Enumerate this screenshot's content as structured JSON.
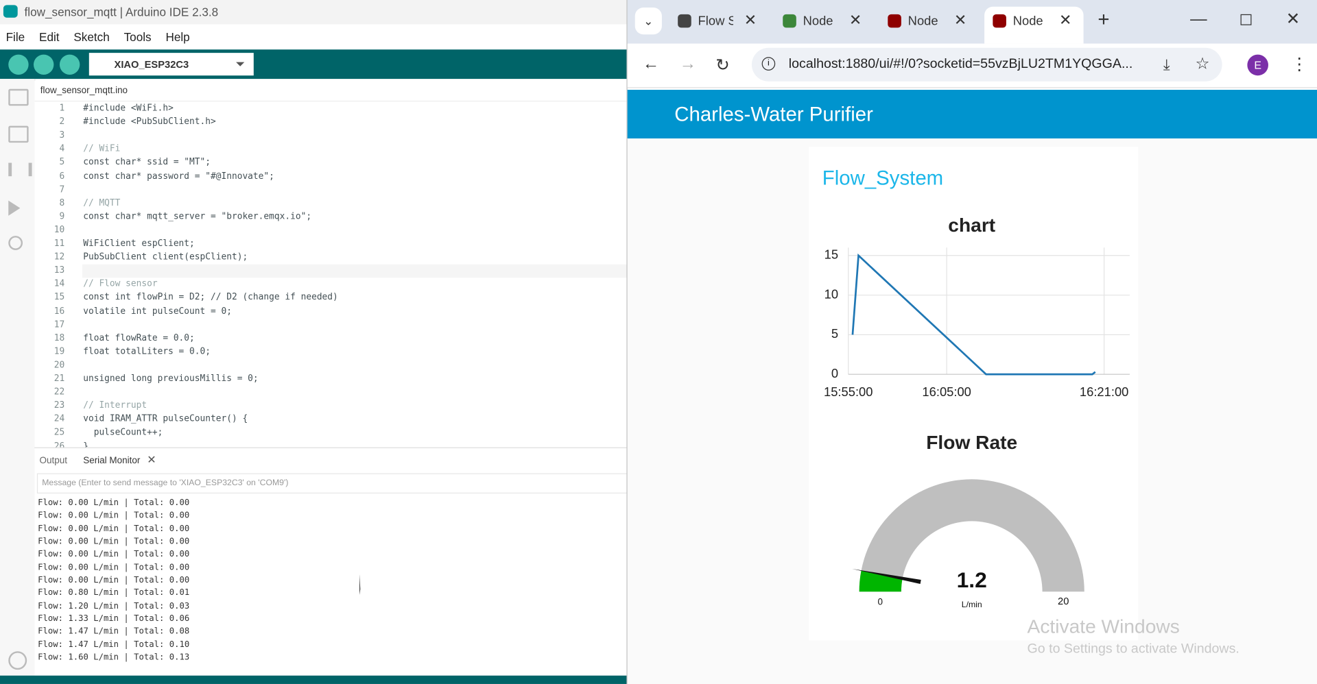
{
  "ide": {
    "title": "flow_sensor_mqtt | Arduino IDE 2.3.8",
    "menu": [
      "File",
      "Edit",
      "Sketch",
      "Tools",
      "Help"
    ],
    "board": "XIAO_ESP32C3",
    "file_tab": "flow_sensor_mqtt.ino",
    "code": [
      {
        "line": 1,
        "text": "#include <WiFi.h>"
      },
      {
        "line": 2,
        "text": "#include <PubSubClient.h>"
      },
      {
        "line": 3
      },
      {
        "line": 4,
        "text": "// WiFi"
      },
      {
        "line": 5,
        "text": "const char* ssid = \"MT\";"
      },
      {
        "line": 6,
        "text": "const char* password = \"#@Innovate\";"
      },
      {
        "line": 7
      },
      {
        "line": 8,
        "text": "// MQTT"
      },
      {
        "line": 9,
        "text": "const char* mqtt_server = \"broker.emqx.io\";"
      },
      {
        "line": 10
      },
      {
        "line": 11,
        "text": "WiFiClient espClient;"
      },
      {
        "line": 12,
        "text": "PubSubClient client(espClient);"
      },
      {
        "line": 13
      },
      {
        "line": 14,
        "text": "// Flow sensor"
      },
      {
        "line": 15,
        "text": "const int flowPin = D2; // D2 (change if needed)"
      },
      {
        "line": 16,
        "text": "volatile int pulseCount = 0;"
      },
      {
        "line": 17
      },
      {
        "line": 18,
        "text": "float flowRate = 0.0;"
      },
      {
        "line": 19,
        "text": "float totalLiters = 0.0;"
      },
      {
        "line": 20
      },
      {
        "line": 21,
        "text": "unsigned long previousMillis = 0;"
      },
      {
        "line": 22
      },
      {
        "line": 23,
        "text": "// Interrupt"
      },
      {
        "line": 24,
        "text": "void IRAM_ATTR pulseCounter() {"
      },
      {
        "line": 25,
        "text": "  pulseCount++;"
      },
      {
        "line": 26,
        "text": "}"
      }
    ],
    "panel_tabs": [
      "Output",
      "Serial Monitor"
    ],
    "message_placeholder": "Message (Enter to send message to 'XIAO_ESP32C3' on 'COM9')",
    "serial_output": [
      "Flow: 0.00 L/min | Total: 0.00",
      "Flow: 0.00 L/min | Total: 0.00",
      "Flow: 0.00 L/min | Total: 0.00",
      "Flow: 0.00 L/min | Total: 0.00",
      "Flow: 0.00 L/min | Total: 0.00",
      "Flow: 0.00 L/min | Total: 0.00",
      "Flow: 0.00 L/min | Total: 0.00",
      "Flow: 0.80 L/min | Total: 0.01",
      "Flow: 1.20 L/min | Total: 0.03",
      "Flow: 1.33 L/min | Total: 0.06",
      "Flow: 1.47 L/min | Total: 0.08",
      "Flow: 1.47 L/min | Total: 0.10",
      "Flow: 1.60 L/min | Total: 0.13"
    ]
  },
  "browser": {
    "tabs": [
      "Flow S",
      "Node",
      "Node",
      "Node"
    ],
    "url": "localhost:1880/ui/#!/0?socketid=55vzBjLU2TM1YQGGA...",
    "profile": "E",
    "dashboard": {
      "title": "Charles-Water Purifier",
      "group": "Flow_System",
      "chart": {
        "type": "line",
        "title": "chart",
        "x": [
          "15:55:26",
          "15:56:02",
          "16:09:00",
          "16:19:48",
          "16:20:06"
        ],
        "series": [
          {
            "color": "#1f77b4",
            "values": [
              5,
              15,
              0,
              0,
              0.3
            ]
          }
        ],
        "xlim": [
          "15:55:00",
          "16:23:36"
        ],
        "xticks": [
          "15:55:00",
          "16:05:00",
          "16:21:00"
        ],
        "ylim": [
          0,
          16
        ],
        "yticks": [
          0,
          5,
          10,
          15
        ],
        "grid": true
      },
      "gauge": {
        "type": "gauge",
        "title": "Flow Rate",
        "value": 1.2,
        "units": "L/min",
        "min": 0,
        "max": 20,
        "color": "#00b500"
      }
    }
  },
  "watermark": {
    "title": "Activate Windows",
    "subtitle": "Go to Settings to activate Windows."
  }
}
